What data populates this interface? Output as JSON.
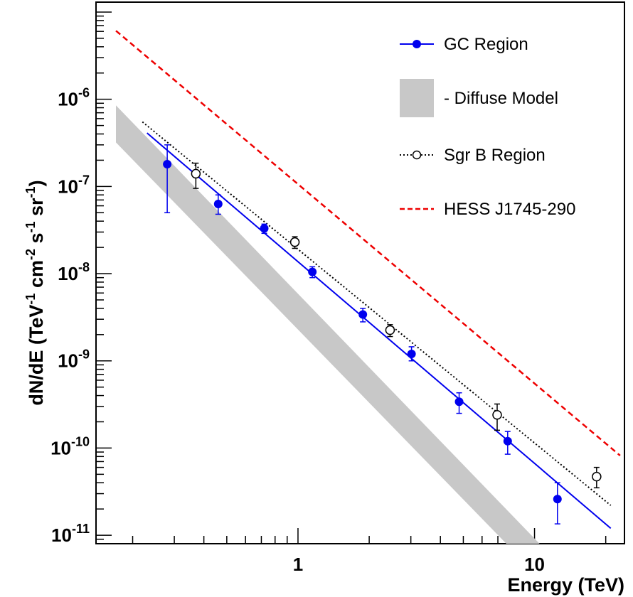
{
  "chart_data": {
    "type": "scatter",
    "xlabel": "Energy (TeV)",
    "ylabel_parts": {
      "base": "dN/dE (TeV",
      "exp1": "-1",
      "mid1": " cm",
      "exp2": "-2",
      "mid2": " s",
      "exp3": "-1",
      "mid3": " sr",
      "exp4": "-1",
      "end": ")"
    },
    "x_scale": "log",
    "y_scale": "log",
    "xlim": [
      0.14,
      24
    ],
    "ylim": [
      8e-12,
      1.3e-05
    ],
    "grid": false,
    "legend_position": "top-right",
    "x_tick_labels": [
      {
        "value": 1,
        "label": "1"
      },
      {
        "value": 10,
        "label": "10"
      }
    ],
    "y_tick_labels": [
      {
        "value": 1e-11,
        "base": "10",
        "exp": "-11"
      },
      {
        "value": 1e-10,
        "base": "10",
        "exp": "-10"
      },
      {
        "value": 1e-09,
        "base": "10",
        "exp": "-9"
      },
      {
        "value": 1e-08,
        "base": "10",
        "exp": "-8"
      },
      {
        "value": 1e-07,
        "base": "10",
        "exp": "-7"
      },
      {
        "value": 1e-06,
        "base": "10",
        "exp": "-6"
      }
    ],
    "series": [
      {
        "name": "GC Region",
        "kind": "points-with-fit",
        "color": "#0000ee",
        "marker": "filled-circle",
        "x": [
          0.28,
          0.46,
          0.72,
          1.15,
          1.88,
          3.02,
          4.8,
          7.7,
          12.5
        ],
        "y": [
          1.8e-07,
          6.3e-08,
          3.3e-08,
          1.05e-08,
          3.4e-09,
          1.2e-09,
          3.4e-10,
          1.2e-10,
          2.6e-11
        ],
        "y_low": [
          5e-08,
          4.8e-08,
          2.9e-08,
          9e-09,
          2.8e-09,
          1e-09,
          2.5e-10,
          8.5e-11,
          1.35e-11
        ],
        "y_high": [
          3e-07,
          8e-08,
          3.7e-08,
          1.2e-08,
          4e-09,
          1.45e-09,
          4.3e-10,
          1.55e-10,
          4e-11
        ],
        "fit": {
          "x": [
            0.23,
            21
          ],
          "y": [
            4.1e-07,
            1.2e-11
          ],
          "style": "solid"
        }
      },
      {
        "name": "Sgr B Region",
        "kind": "points-with-fit",
        "color": "#000000",
        "marker": "open-circle",
        "x": [
          0.37,
          0.97,
          2.45,
          6.95,
          18.3
        ],
        "y": [
          1.4e-07,
          2.3e-08,
          2.25e-09,
          2.4e-10,
          4.7e-11
        ],
        "y_low": [
          9.5e-08,
          1.95e-08,
          1.9e-09,
          1.6e-10,
          3.5e-11
        ],
        "y_high": [
          1.85e-07,
          2.65e-08,
          2.6e-09,
          3.2e-10,
          6e-11
        ],
        "fit": {
          "x": [
            0.22,
            21
          ],
          "y": [
            5.5e-07,
            2.2e-11
          ],
          "style": "dotted"
        }
      },
      {
        "name": "HESS J1745-290",
        "kind": "line",
        "color": "#ee0000",
        "style": "dashed",
        "x": [
          0.17,
          23
        ],
        "y": [
          6.1e-06,
          8.2e-11
        ]
      },
      {
        "name": "- Diffuse Model",
        "kind": "band",
        "color": "#c8c8c8",
        "x": [
          0.17,
          10.5
        ],
        "y_lower": [
          3.2e-07,
          8e-12
        ],
        "y_upper": [
          8.5e-07,
          8e-12
        ],
        "band_corners": [
          {
            "x": 0.17,
            "y": 8.5e-07
          },
          {
            "x": 10.5,
            "y": 8e-12
          },
          {
            "x": 7.6,
            "y": 8e-12
          },
          {
            "x": 0.17,
            "y": 3.2e-07
          }
        ]
      }
    ],
    "legend": [
      {
        "label": "GC Region",
        "symbol": "line-filled-circle",
        "color": "#0000ee"
      },
      {
        "label": "- Diffuse Model",
        "symbol": "box",
        "color": "#c8c8c8"
      },
      {
        "label": "Sgr B Region",
        "symbol": "dotted-open-circle",
        "color": "#000000"
      },
      {
        "label": "HESS J1745-290",
        "symbol": "dashed-line",
        "color": "#ee0000"
      }
    ]
  }
}
